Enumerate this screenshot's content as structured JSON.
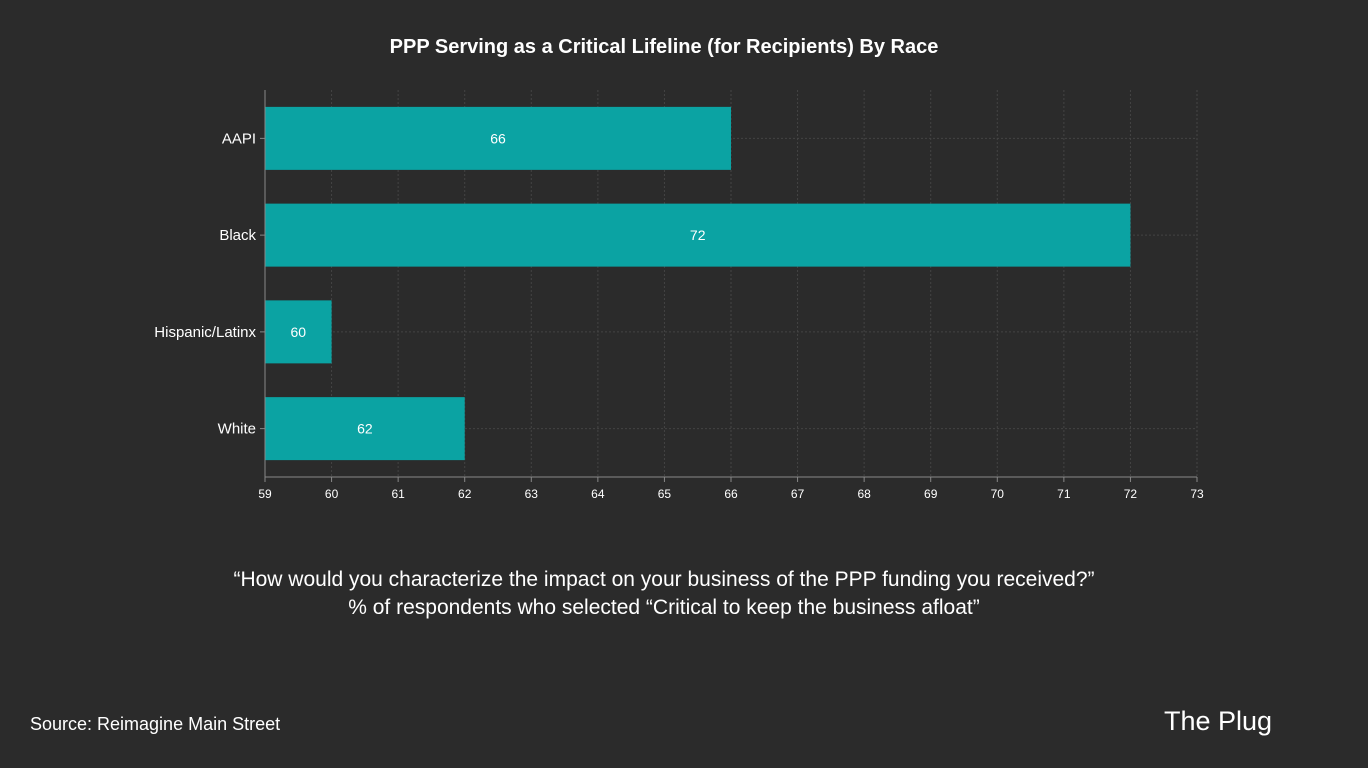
{
  "chart_data": {
    "type": "bar",
    "orientation": "horizontal",
    "title": "PPP Serving as a Critical Lifeline (for Recipients) By Race",
    "categories": [
      "AAPI",
      "Black",
      "Hispanic/Latinx",
      "White"
    ],
    "values": [
      66,
      72,
      60,
      62
    ],
    "xlim": [
      59,
      73
    ],
    "xticks": [
      59,
      60,
      61,
      62,
      63,
      64,
      65,
      66,
      67,
      68,
      69,
      70,
      71,
      72,
      73
    ],
    "xlabel": "",
    "ylabel": "",
    "grid": true,
    "bar_color": "#0ba3a3"
  },
  "caption": {
    "line1": "“How would you characterize the impact on your business of the PPP funding you received?”",
    "line2": "% of respondents who selected “Critical to keep the business afloat”"
  },
  "source": "Source: Reimagine Main Street",
  "brand": "The Plug"
}
